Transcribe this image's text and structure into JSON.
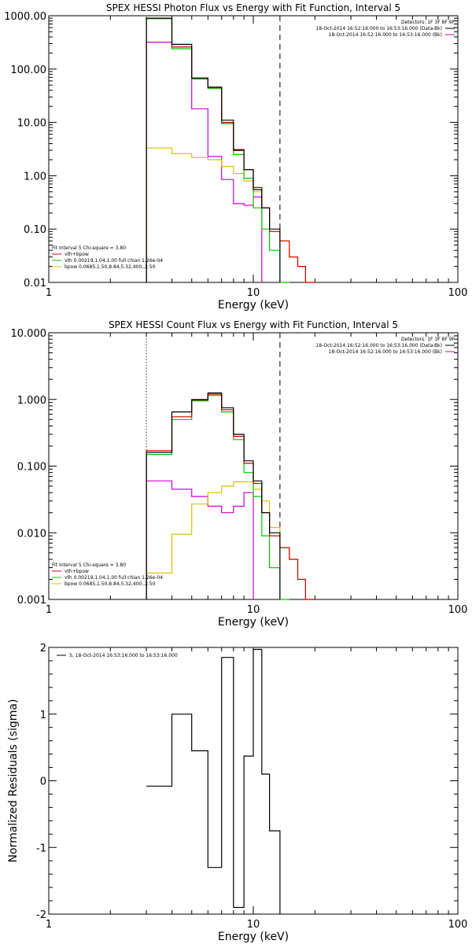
{
  "colors": {
    "data": "#000000",
    "total": "#d40000",
    "vth": "#00cc00",
    "bpow": "#d8c000",
    "background": "#d000d0"
  },
  "chart_data": [
    {
      "type": "line",
      "title": "SPEX HESSI Photon Flux vs Energy with Fit Function, Interval 5",
      "xlabel": "Energy (keV)",
      "ylabel": "",
      "x_scale": "log",
      "y_scale": "log",
      "xlim": [
        1,
        100
      ],
      "ylim": [
        0.01,
        1000
      ],
      "xticks": [
        "1",
        "10",
        "100"
      ],
      "yticks": [
        "0.01",
        "0.10",
        "1.00",
        "10.00",
        "100.00",
        "1000.00"
      ],
      "ytick_values": [
        0.01,
        0.1,
        1,
        10,
        100,
        1000
      ],
      "vlines": [
        {
          "x": 3.0,
          "style": "dotted",
          "color": "#d8c000"
        },
        {
          "x": 13.5,
          "style": "dashed",
          "color": "#000000"
        }
      ],
      "legend_top_right": {
        "title": "Detectors: 1F 3F 8F 9F",
        "entries": [
          {
            "text": "18-Oct-2014 16:52:16.000 to 16:53:16.000 (Data-Bk)",
            "color": "#000000"
          },
          {
            "text": "18-Oct-2014 16:52:16.000 to 16:53:16.000 (Bk)",
            "color": "#d000d0"
          }
        ]
      },
      "legend_bottom_left": {
        "title": "Fit Interval 5   Chi-square = 3.80",
        "entries": [
          {
            "text": "vth+bpow",
            "color": "#d40000"
          },
          {
            "text": "vth 0.00219,1.04,1.00  full chian 1.26e-04",
            "color": "#00cc00"
          },
          {
            "text": "bpow 0.0685,1.50,8.84,5.32,400.,2.50",
            "color": "#d8c000"
          }
        ]
      },
      "edges": [
        3.0,
        4.0,
        5.0,
        6.0,
        7.0,
        8.0,
        9.0,
        10.0,
        11.0,
        12.0,
        13.5,
        15.0,
        16.5,
        18.0,
        20.0
      ],
      "series": [
        {
          "name": "Data-Bk",
          "color": "#000000",
          "values": [
            900,
            290,
            68,
            46,
            11,
            3.0,
            1.3,
            0.55,
            0.25,
            0.1,
            null,
            null,
            null,
            null
          ]
        },
        {
          "name": "vth+bpow",
          "color": "#d40000",
          "values": [
            900,
            260,
            68,
            45,
            10,
            3.1,
            1.3,
            0.6,
            0.25,
            0.09,
            0.06,
            0.03,
            0.02,
            0.01
          ]
        },
        {
          "name": "vth",
          "color": "#00cc00",
          "values": [
            880,
            240,
            65,
            43,
            9.5,
            2.5,
            0.9,
            0.25,
            0.1,
            0.04,
            0.01,
            null,
            null,
            null
          ]
        },
        {
          "name": "bpow",
          "color": "#d8c000",
          "values": [
            3.3,
            2.6,
            2.2,
            2.0,
            1.5,
            1.1,
            0.8,
            0.5,
            0.25,
            0.09,
            0.06,
            0.03,
            0.02,
            0.01
          ]
        },
        {
          "name": "Bk",
          "color": "#d000d0",
          "values": [
            320,
            260,
            18,
            2.3,
            0.85,
            0.3,
            0.28,
            0.4,
            null,
            null,
            null,
            null,
            null,
            null
          ]
        }
      ]
    },
    {
      "type": "line",
      "title": "SPEX HESSI Count Flux vs Energy with Fit Function, Interval 5",
      "xlabel": "Energy (keV)",
      "ylabel": "",
      "x_scale": "log",
      "y_scale": "log",
      "xlim": [
        1,
        100
      ],
      "ylim": [
        0.001,
        10
      ],
      "xticks": [
        "1",
        "10",
        "100"
      ],
      "yticks": [
        "0.001",
        "0.010",
        "0.100",
        "1.000",
        "10.000"
      ],
      "ytick_values": [
        0.001,
        0.01,
        0.1,
        1,
        10
      ],
      "vlines": [
        {
          "x": 3.0,
          "style": "dotted",
          "color": "#000000"
        },
        {
          "x": 13.5,
          "style": "dashed",
          "color": "#000000"
        }
      ],
      "legend_top_right": {
        "title": "Detectors: 1F 3F 8F 9F",
        "entries": [
          {
            "text": "18-Oct-2014 16:52:16.000 to 16:53:16.000 (Data-Bk)",
            "color": "#000000"
          },
          {
            "text": "18-Oct-2014 16:52:16.000 to 16:53:16.000 (Bk)",
            "color": "#d000d0"
          }
        ]
      },
      "legend_bottom_left": {
        "title": "Fit Interval 5   Chi-square = 3.80",
        "entries": [
          {
            "text": "vth+bpow",
            "color": "#d40000"
          },
          {
            "text": "vth 0.00219,1.04,1.00  full chian 1.26e-04",
            "color": "#00cc00"
          },
          {
            "text": "bpow 0.0685,1.50,8.84,5.32,400.,2.50",
            "color": "#d8c000"
          }
        ]
      },
      "edges": [
        3.0,
        4.0,
        5.0,
        6.0,
        7.0,
        8.0,
        9.0,
        10.0,
        11.0,
        12.0,
        13.5,
        15.0,
        16.5,
        18.0,
        20.0
      ],
      "series": [
        {
          "name": "Data-Bk",
          "color": "#000000",
          "values": [
            0.16,
            0.65,
            1.0,
            1.25,
            0.75,
            0.3,
            0.12,
            0.06,
            0.02,
            0.01,
            null,
            null,
            null,
            null
          ]
        },
        {
          "name": "vth+bpow",
          "color": "#d40000",
          "values": [
            0.17,
            0.55,
            0.98,
            1.2,
            0.7,
            0.28,
            0.11,
            0.055,
            0.02,
            0.009,
            0.006,
            0.004,
            0.002,
            0.001
          ]
        },
        {
          "name": "vth",
          "color": "#00cc00",
          "values": [
            0.15,
            0.5,
            0.95,
            1.15,
            0.65,
            0.25,
            0.08,
            0.035,
            0.009,
            0.003,
            0.001,
            null,
            null,
            null
          ]
        },
        {
          "name": "bpow",
          "color": "#d8c000",
          "values": [
            0.0025,
            0.0095,
            0.027,
            0.04,
            0.05,
            0.058,
            0.058,
            0.045,
            0.03,
            0.012,
            0.006,
            0.004,
            0.002,
            0.001
          ]
        },
        {
          "name": "Bk",
          "color": "#d000d0",
          "values": [
            0.06,
            0.045,
            0.035,
            0.025,
            0.02,
            0.025,
            0.04,
            null,
            null,
            null,
            null,
            null,
            null,
            null
          ]
        }
      ]
    },
    {
      "type": "line",
      "title": "",
      "xlabel": "Energy (keV)",
      "ylabel": "Normalized Residuals (sigma)",
      "x_scale": "log",
      "y_scale": "linear",
      "xlim": [
        1,
        100
      ],
      "ylim": [
        -2,
        2
      ],
      "xticks": [
        "1",
        "10",
        "100"
      ],
      "yticks": [
        "2",
        "1",
        "0",
        "-1",
        "-2"
      ],
      "ytick_values": [
        2,
        1,
        0,
        -1,
        -2
      ],
      "legend": {
        "text": "5, 18-Oct-2014 16:53:16.000 to 16:53:16.000",
        "color": "#000000"
      },
      "edges": [
        3.0,
        4.0,
        5.0,
        6.0,
        7.0,
        8.0,
        9.0,
        10.0,
        11.0,
        12.0,
        13.5
      ],
      "series": [
        {
          "name": "",
          "color": "#000000",
          "values": [
            -0.08,
            1.0,
            0.45,
            -1.3,
            1.85,
            -1.9,
            0.37,
            1.97,
            0.1,
            -0.75
          ]
        }
      ]
    }
  ]
}
